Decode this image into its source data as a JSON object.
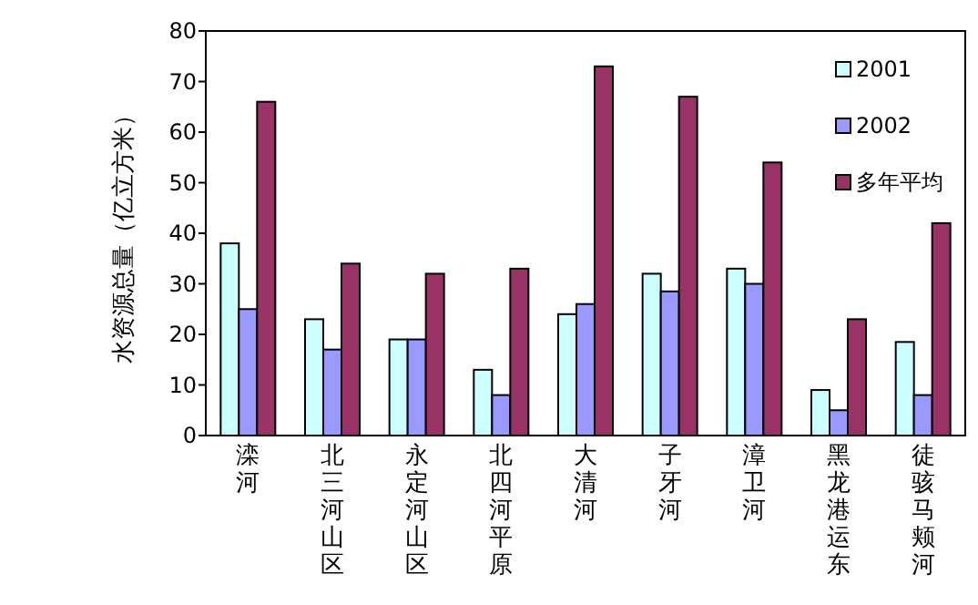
{
  "chart_data": {
    "type": "bar",
    "ylabel": "水资源总量（亿立方米）",
    "categories": [
      "滦河",
      "北三河山区",
      "永定河山区",
      "北四河平原",
      "大清河",
      "子牙河",
      "漳卫河",
      "黑龙港运东",
      "徒骇马颊河"
    ],
    "series": [
      {
        "name": "2001",
        "color": "#ccffff",
        "values": [
          38,
          23,
          19,
          13,
          24,
          32,
          33,
          9,
          18.5
        ]
      },
      {
        "name": "2002",
        "color": "#9999ff",
        "values": [
          25,
          17,
          19,
          8,
          26,
          28.5,
          30,
          5,
          8
        ]
      },
      {
        "name": "多年平均",
        "color": "#993366",
        "values": [
          66,
          34,
          32,
          33,
          73,
          67,
          54,
          23,
          42
        ]
      }
    ],
    "ylim": [
      0,
      80
    ],
    "yticks": [
      0,
      10,
      20,
      30,
      40,
      50,
      60,
      70,
      80
    ],
    "legend": "right",
    "grid": false
  }
}
